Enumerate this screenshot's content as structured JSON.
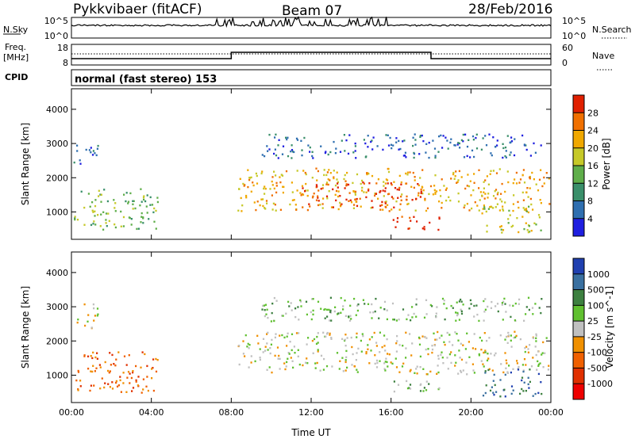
{
  "header": {
    "station": "Pykkvibaer (fitACF)",
    "beam": "Beam 07",
    "date": "28/Feb/2016"
  },
  "strips": {
    "nsky_label": "N.Sky",
    "nsky_top": "10^5",
    "nsky_bottom": "10^0",
    "nsearch_label": "N.Search",
    "nsearch_top": "10^5",
    "nsearch_bottom": "10^0",
    "freq_label_1": "Freq.",
    "freq_label_2": "[MHz]",
    "freq_top": "18",
    "freq_bottom": "8",
    "nave_label": "Nave",
    "nave_top": "60",
    "nave_bottom": "0",
    "cpid_label": "CPID",
    "cpid_text": "normal (fast stereo) 153"
  },
  "chart_data": [
    {
      "type": "heatmap",
      "title": "",
      "xlabel": "Time UT",
      "ylabel": "Slant Range [km]",
      "x_ticks": [
        "00:00",
        "04:00",
        "08:00",
        "12:00",
        "16:00",
        "20:00",
        "00:00"
      ],
      "xlim_hours": [
        0,
        24
      ],
      "ylim": [
        200,
        4600
      ],
      "y_ticks": [
        1000,
        2000,
        3000,
        4000
      ],
      "colorbar": {
        "label": "Power [dB]",
        "ticks": [
          "4",
          "8",
          "12",
          "16",
          "20",
          "24",
          "28"
        ],
        "colors": [
          "#1f1fe0",
          "#2f6fb0",
          "#3a8f6a",
          "#5fae4a",
          "#c6c928",
          "#f0a800",
          "#f07000",
          "#e02000"
        ]
      },
      "regions": [
        {
          "t0": 0.1,
          "t1": 4.3,
          "r0": 500,
          "r1": 1700,
          "level": 3
        },
        {
          "t0": 0.1,
          "t1": 1.3,
          "r0": 2400,
          "r1": 3100,
          "level": 1
        },
        {
          "t0": 8.3,
          "t1": 23.9,
          "r0": 1050,
          "r1": 2300,
          "level": 5
        },
        {
          "t0": 11.5,
          "t1": 17.5,
          "r0": 1150,
          "r1": 1900,
          "level": 7
        },
        {
          "t0": 9.5,
          "t1": 23.5,
          "r0": 2600,
          "r1": 3300,
          "level": 1
        },
        {
          "t0": 16.0,
          "t1": 18.5,
          "r0": 500,
          "r1": 900,
          "level": 7
        },
        {
          "t0": 20.5,
          "t1": 23.5,
          "r0": 400,
          "r1": 1200,
          "level": 4
        }
      ]
    },
    {
      "type": "heatmap",
      "title": "",
      "xlabel": "Time UT",
      "ylabel": "Slant Range [km]",
      "x_ticks": [
        "00:00",
        "04:00",
        "08:00",
        "12:00",
        "16:00",
        "20:00",
        "00:00"
      ],
      "xlim_hours": [
        0,
        24
      ],
      "ylim": [
        200,
        4600
      ],
      "y_ticks": [
        1000,
        2000,
        3000,
        4000
      ],
      "colorbar": {
        "label": "Velocity [m s^-1]",
        "ticks": [
          "1000",
          "500",
          "100",
          "25",
          "-25",
          "-100",
          "-500",
          "-1000"
        ],
        "colors": [
          "#2040b0",
          "#3a70a0",
          "#3d8040",
          "#60c030",
          "#c0c0c0",
          "#f09000",
          "#f06000",
          "#e03000",
          "#ee0000"
        ]
      },
      "regions": [
        {
          "t0": 8.3,
          "t1": 23.9,
          "r0": 1050,
          "r1": 2300,
          "level": 4
        },
        {
          "t0": 0.1,
          "t1": 1.3,
          "r0": 2400,
          "r1": 3100,
          "level": 4
        },
        {
          "t0": 0.1,
          "t1": 4.3,
          "r0": 500,
          "r1": 1700,
          "level": 6
        },
        {
          "t0": 16.0,
          "t1": 18.5,
          "r0": 500,
          "r1": 900,
          "level": 3
        },
        {
          "t0": 20.5,
          "t1": 23.5,
          "r0": 400,
          "r1": 1200,
          "level": 1
        },
        {
          "t0": 9.5,
          "t1": 23.5,
          "r0": 2600,
          "r1": 3300,
          "level": 3
        }
      ]
    }
  ]
}
